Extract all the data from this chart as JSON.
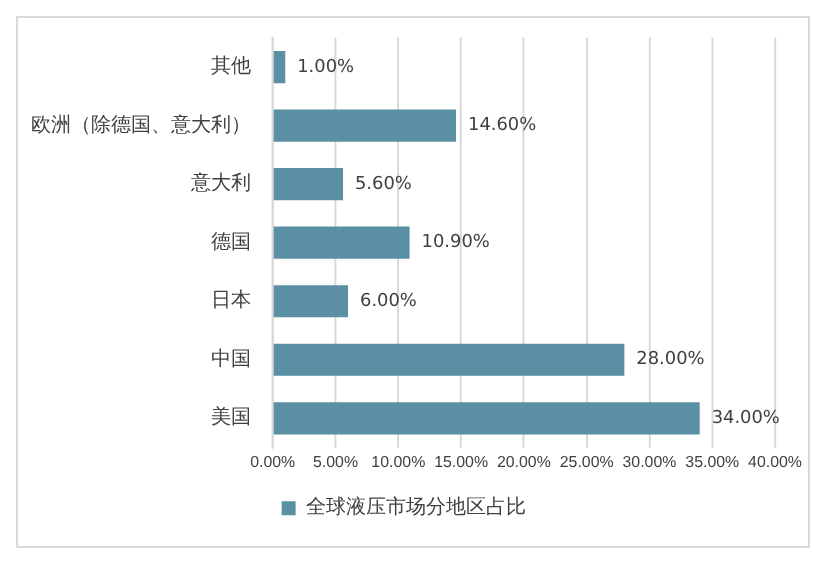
{
  "chart_data": {
    "type": "bar",
    "orientation": "horizontal",
    "categories": [
      "其他",
      "欧洲（除德国、意大利）",
      "意大利",
      "德国",
      "日本",
      "中国",
      "美国"
    ],
    "series": [
      {
        "name": "全球液压市场分地区占比",
        "color": "#5b8fa3",
        "values": [
          1.0,
          14.6,
          5.6,
          10.9,
          6.0,
          28.0,
          34.0
        ],
        "value_labels": [
          "1.00%",
          "14.60%",
          "5.60%",
          "10.90%",
          "6.00%",
          "28.00%",
          "34.00%"
        ]
      }
    ],
    "xlim": [
      0,
      40
    ],
    "xticks": [
      {
        "value": 0,
        "label": "0.00%"
      },
      {
        "value": 5,
        "label": "5.00%"
      },
      {
        "value": 10,
        "label": "10.00%"
      },
      {
        "value": 15,
        "label": "15.00%"
      },
      {
        "value": 20,
        "label": "20.00%"
      },
      {
        "value": 25,
        "label": "25.00%"
      },
      {
        "value": 30,
        "label": "30.00%"
      },
      {
        "value": 35,
        "label": "35.00%"
      },
      {
        "value": 40,
        "label": "40.00%"
      }
    ],
    "grid": "x",
    "legend": "bottom"
  }
}
